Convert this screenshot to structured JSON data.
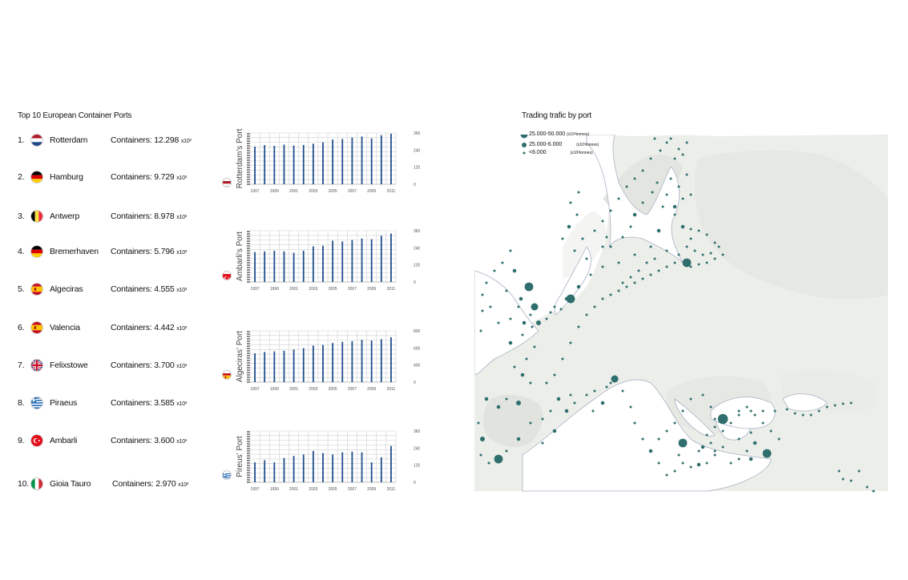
{
  "list": {
    "title": "Top 10 European Container Ports",
    "ports": [
      {
        "rank": "1.",
        "name": "Rotterdam",
        "flag": "nl",
        "containers_label": "Containers: 12.298",
        "unit": "x10³"
      },
      {
        "rank": "2.",
        "name": "Hamburg",
        "flag": "de",
        "containers_label": "Containers: 9.729",
        "unit": "x10³"
      },
      {
        "rank": "3.",
        "name": "Antwerp",
        "flag": "be",
        "containers_label": "Containers: 8.978",
        "unit": "x10³"
      },
      {
        "rank": "4.",
        "name": "Bremerhaven",
        "flag": "de",
        "containers_label": "Containers: 5.796",
        "unit": "x10³"
      },
      {
        "rank": "5.",
        "name": "Algeciras",
        "flag": "es",
        "containers_label": "Containers: 4.555",
        "unit": "x10³"
      },
      {
        "rank": "6.",
        "name": "Valencia",
        "flag": "es",
        "containers_label": "Containers: 4.442",
        "unit": "x10³"
      },
      {
        "rank": "7.",
        "name": "Felixstowe",
        "flag": "gb",
        "containers_label": "Containers: 3.700",
        "unit": "x10³"
      },
      {
        "rank": "8.",
        "name": "Piraeus",
        "flag": "gr",
        "containers_label": "Containers: 3.585",
        "unit": "x10³"
      },
      {
        "rank": "9.",
        "name": "Ambarli",
        "flag": "tr",
        "containers_label": "Containers: 3.600",
        "unit": "x10³"
      },
      {
        "rank": "10.",
        "name": "Gioia Tauro",
        "flag": "it",
        "containers_label": "Containers: 2.970",
        "unit": "x10³"
      }
    ]
  },
  "chart_data": [
    {
      "type": "bar",
      "ylabel": "Rotterdam's Port",
      "flag": "nl",
      "categories": [
        "1997",
        "1998",
        "1999",
        "2000",
        "2001",
        "2002",
        "2003",
        "2004",
        "2005",
        "2006",
        "2007",
        "2008",
        "2009",
        "2010",
        "2011"
      ],
      "x_tick_labels": [
        "1997",
        "1999",
        "2001",
        "2003",
        "2005",
        "2007",
        "2009",
        "2011"
      ],
      "y_tick_labels": [
        "0",
        "12000",
        "24000",
        "36000"
      ],
      "ylim": [
        0,
        36000
      ],
      "values": [
        26500,
        27500,
        27000,
        27800,
        27200,
        27600,
        28500,
        29500,
        31500,
        31800,
        32800,
        33500,
        32200,
        34500,
        35500
      ]
    },
    {
      "type": "bar",
      "ylabel": "Ambarli's Port",
      "flag": "tr",
      "categories": [
        "1997",
        "1998",
        "1999",
        "2000",
        "2001",
        "2002",
        "2003",
        "2004",
        "2005",
        "2006",
        "2007",
        "2008",
        "2009",
        "2010",
        "2011"
      ],
      "x_tick_labels": [
        "1997",
        "1999",
        "2001",
        "2003",
        "2005",
        "2007",
        "2009",
        "2011"
      ],
      "y_tick_labels": [
        "0",
        "12000",
        "24000",
        "36000"
      ],
      "ylim": [
        0,
        36000
      ],
      "values": [
        21000,
        21500,
        22000,
        21500,
        20500,
        22000,
        25000,
        25500,
        29000,
        28500,
        29500,
        30500,
        30000,
        32500,
        34000
      ]
    },
    {
      "type": "bar",
      "ylabel": "Algeciras' Port",
      "flag": "es",
      "categories": [
        "1997",
        "1998",
        "1999",
        "2000",
        "2001",
        "2002",
        "2003",
        "2004",
        "2005",
        "2006",
        "2007",
        "2008",
        "2009",
        "2010",
        "2011"
      ],
      "x_tick_labels": [
        "1997",
        "1999",
        "2001",
        "2003",
        "2005",
        "2007",
        "2009",
        "2011"
      ],
      "y_tick_labels": [
        "0",
        "40000",
        "60000",
        "80000"
      ],
      "ylim": [
        0,
        80000
      ],
      "values": [
        45000,
        47000,
        48000,
        49000,
        51000,
        53000,
        57000,
        58000,
        61000,
        63000,
        64000,
        66000,
        65000,
        67000,
        70000
      ]
    },
    {
      "type": "bar",
      "ylabel": "Pireus' Port",
      "flag": "gr",
      "categories": [
        "1997",
        "1998",
        "1999",
        "2000",
        "2001",
        "2002",
        "2003",
        "2004",
        "2005",
        "2006",
        "2007",
        "2008",
        "2009",
        "2010",
        "2011"
      ],
      "x_tick_labels": [
        "1997",
        "1999",
        "2001",
        "2003",
        "2005",
        "2007",
        "2009",
        "2011"
      ],
      "y_tick_labels": [
        "0",
        "12000",
        "24000",
        "36000"
      ],
      "ylim": [
        0,
        36000
      ],
      "values": [
        14000,
        15500,
        14000,
        17000,
        18500,
        19500,
        22000,
        20500,
        19500,
        21000,
        21500,
        21000,
        14000,
        17500,
        25500
      ]
    }
  ],
  "map": {
    "title": "Trading trafic by port",
    "legend": [
      {
        "label": "25.000-50.000",
        "unit": "(x10³tonnes)",
        "size": "large"
      },
      {
        "label": "25.000-6.000",
        "unit": "(x10³tonnes)",
        "size": "medium"
      },
      {
        "label": "<6.000",
        "unit": "(x10³tonnes)",
        "size": "small"
      }
    ],
    "colors": {
      "port": "#2e6e6d",
      "land": "#eceeea",
      "coast": "#a9b3c3"
    }
  }
}
